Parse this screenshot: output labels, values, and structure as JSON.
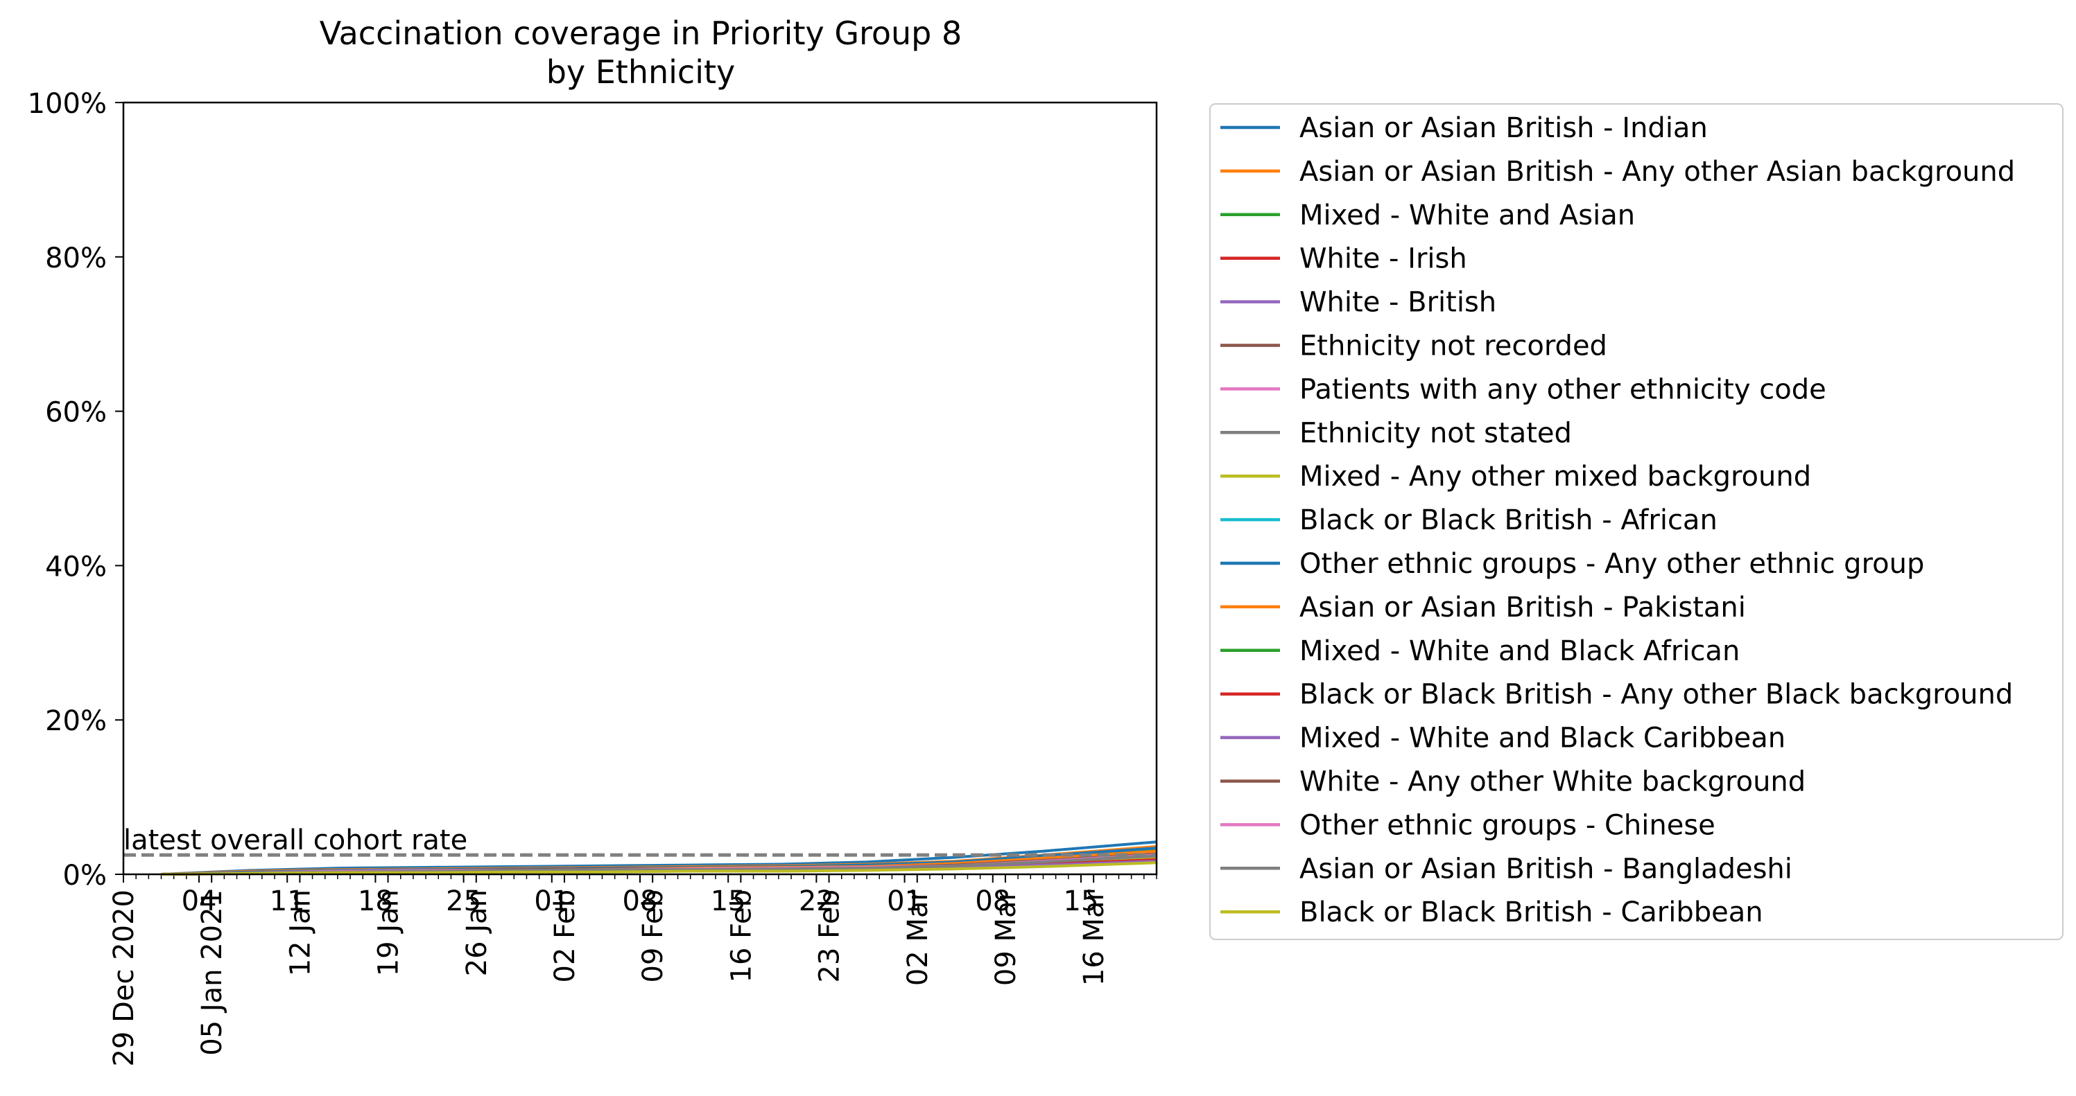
{
  "chart_data": {
    "type": "line",
    "title": "Vaccination coverage in Priority Group 8\nby Ethnicity",
    "ylabel": "",
    "xlabel": "",
    "xlim": [
      "2020-12-29",
      "2021-03-21"
    ],
    "ylim": [
      0,
      100
    ],
    "y_ticks": [
      "0%",
      "20%",
      "40%",
      "60%",
      "80%",
      "100%"
    ],
    "y_tick_values": [
      0,
      20,
      40,
      60,
      80,
      100
    ],
    "x_ticks": [
      {
        "date": "2020-12-29",
        "major": "29 Dec 2020",
        "minor": ""
      },
      {
        "date": "2021-01-04",
        "major": "",
        "minor": "04"
      },
      {
        "date": "2021-01-05",
        "major": "05 Jan 2021",
        "minor": ""
      },
      {
        "date": "2021-01-11",
        "major": "",
        "minor": "11"
      },
      {
        "date": "2021-01-12",
        "major": "12 Jan",
        "minor": ""
      },
      {
        "date": "2021-01-18",
        "major": "",
        "minor": "18"
      },
      {
        "date": "2021-01-19",
        "major": "19 Jan",
        "minor": ""
      },
      {
        "date": "2021-01-25",
        "major": "",
        "minor": "25"
      },
      {
        "date": "2021-01-26",
        "major": "26 Jan",
        "minor": ""
      },
      {
        "date": "2021-02-01",
        "major": "",
        "minor": "01"
      },
      {
        "date": "2021-02-02",
        "major": "02 Feb",
        "minor": ""
      },
      {
        "date": "2021-02-08",
        "major": "",
        "minor": "08"
      },
      {
        "date": "2021-02-09",
        "major": "09 Feb",
        "minor": ""
      },
      {
        "date": "2021-02-15",
        "major": "",
        "minor": "15"
      },
      {
        "date": "2021-02-16",
        "major": "16 Feb",
        "minor": ""
      },
      {
        "date": "2021-02-22",
        "major": "",
        "minor": "22"
      },
      {
        "date": "2021-02-23",
        "major": "23 Feb",
        "minor": ""
      },
      {
        "date": "2021-03-01",
        "major": "",
        "minor": "01"
      },
      {
        "date": "2021-03-02",
        "major": "02 Mar",
        "minor": ""
      },
      {
        "date": "2021-03-08",
        "major": "",
        "minor": "08"
      },
      {
        "date": "2021-03-09",
        "major": "09 Mar",
        "minor": ""
      },
      {
        "date": "2021-03-15",
        "major": "",
        "minor": "15"
      },
      {
        "date": "2021-03-16",
        "major": "16 Mar",
        "minor": ""
      }
    ],
    "annotation": {
      "text": "latest overall cohort rate",
      "y": 2.5
    },
    "x": [
      "2021-01-01",
      "2021-01-08",
      "2021-01-15",
      "2021-01-22",
      "2021-01-29",
      "2021-02-05",
      "2021-02-12",
      "2021-02-19",
      "2021-02-26",
      "2021-03-05",
      "2021-03-12",
      "2021-03-21"
    ],
    "legend_position": "outside-right",
    "series": [
      {
        "name": "Asian or Asian British - Indian",
        "color": "#1f77b4",
        "values": [
          0.0,
          0.5,
          0.8,
          0.9,
          1.0,
          1.1,
          1.2,
          1.3,
          1.6,
          2.2,
          3.0,
          4.2
        ]
      },
      {
        "name": "Asian or Asian British - Any other Asian background",
        "color": "#ff7f0e",
        "values": [
          0.0,
          0.4,
          0.6,
          0.7,
          0.8,
          0.9,
          1.0,
          1.1,
          1.3,
          1.7,
          2.5,
          3.6
        ]
      },
      {
        "name": "Mixed - White and Asian",
        "color": "#2ca02c",
        "values": [
          0.0,
          0.3,
          0.5,
          0.6,
          0.7,
          0.8,
          0.9,
          1.0,
          1.2,
          1.5,
          2.2,
          3.2
        ]
      },
      {
        "name": "White - Irish",
        "color": "#d62728",
        "values": [
          0.0,
          0.3,
          0.5,
          0.6,
          0.7,
          0.8,
          0.9,
          1.0,
          1.1,
          1.4,
          2.0,
          2.9
        ]
      },
      {
        "name": "White - British",
        "color": "#9467bd",
        "values": [
          0.0,
          0.2,
          0.4,
          0.5,
          0.6,
          0.7,
          0.8,
          0.9,
          1.0,
          1.3,
          1.9,
          2.7
        ]
      },
      {
        "name": "Ethnicity not recorded",
        "color": "#8c564b",
        "values": [
          0.0,
          0.2,
          0.4,
          0.5,
          0.6,
          0.6,
          0.7,
          0.8,
          0.9,
          1.2,
          1.7,
          2.5
        ]
      },
      {
        "name": "Patients with any other ethnicity code",
        "color": "#e377c2",
        "values": [
          0.0,
          0.2,
          0.3,
          0.4,
          0.5,
          0.6,
          0.6,
          0.7,
          0.8,
          1.1,
          1.6,
          2.3
        ]
      },
      {
        "name": "Ethnicity not stated",
        "color": "#7f7f7f",
        "values": [
          0.0,
          0.2,
          0.3,
          0.4,
          0.5,
          0.5,
          0.6,
          0.7,
          0.8,
          1.0,
          1.5,
          2.2
        ]
      },
      {
        "name": "Mixed - Any other mixed background",
        "color": "#bcbd22",
        "values": [
          0.0,
          0.1,
          0.3,
          0.4,
          0.4,
          0.5,
          0.6,
          0.6,
          0.7,
          0.9,
          1.4,
          2.0
        ]
      },
      {
        "name": "Black or Black British - African",
        "color": "#17becf",
        "values": [
          0.0,
          0.1,
          0.2,
          0.3,
          0.4,
          0.4,
          0.5,
          0.6,
          0.6,
          0.8,
          1.2,
          1.8
        ]
      },
      {
        "name": "Other ethnic groups - Any other ethnic group",
        "color": "#1f77b4",
        "values": [
          0.0,
          0.3,
          0.5,
          0.6,
          0.7,
          0.8,
          0.9,
          1.0,
          1.2,
          1.6,
          2.4,
          3.4
        ]
      },
      {
        "name": "Asian or Asian British - Pakistani",
        "color": "#ff7f0e",
        "values": [
          0.0,
          0.2,
          0.4,
          0.5,
          0.6,
          0.7,
          0.8,
          0.9,
          1.0,
          1.4,
          2.1,
          3.0
        ]
      },
      {
        "name": "Mixed - White and Black African",
        "color": "#2ca02c",
        "values": [
          0.0,
          0.1,
          0.3,
          0.4,
          0.5,
          0.5,
          0.6,
          0.7,
          0.8,
          1.1,
          1.6,
          2.4
        ]
      },
      {
        "name": "Black or Black British - Any other Black background",
        "color": "#d62728",
        "values": [
          0.0,
          0.1,
          0.2,
          0.3,
          0.4,
          0.4,
          0.5,
          0.5,
          0.6,
          0.9,
          1.3,
          1.9
        ]
      },
      {
        "name": "Mixed - White and Black Caribbean",
        "color": "#9467bd",
        "values": [
          0.0,
          0.1,
          0.2,
          0.3,
          0.3,
          0.4,
          0.4,
          0.5,
          0.6,
          0.8,
          1.2,
          1.7
        ]
      },
      {
        "name": "White - Any other White background",
        "color": "#8c564b",
        "values": [
          0.0,
          0.2,
          0.4,
          0.5,
          0.6,
          0.7,
          0.7,
          0.8,
          0.9,
          1.2,
          1.8,
          2.6
        ]
      },
      {
        "name": "Other ethnic groups - Chinese",
        "color": "#e377c2",
        "values": [
          0.0,
          0.2,
          0.4,
          0.5,
          0.5,
          0.6,
          0.7,
          0.8,
          0.9,
          1.1,
          1.7,
          2.5
        ]
      },
      {
        "name": "Asian or Asian British - Bangladeshi",
        "color": "#7f7f7f",
        "values": [
          0.0,
          0.2,
          0.3,
          0.4,
          0.5,
          0.6,
          0.6,
          0.7,
          0.8,
          1.1,
          1.6,
          2.4
        ]
      },
      {
        "name": "Black or Black British - Caribbean",
        "color": "#bcbd22",
        "values": [
          0.0,
          0.1,
          0.2,
          0.2,
          0.3,
          0.3,
          0.4,
          0.4,
          0.5,
          0.7,
          1.0,
          1.5
        ]
      }
    ]
  }
}
